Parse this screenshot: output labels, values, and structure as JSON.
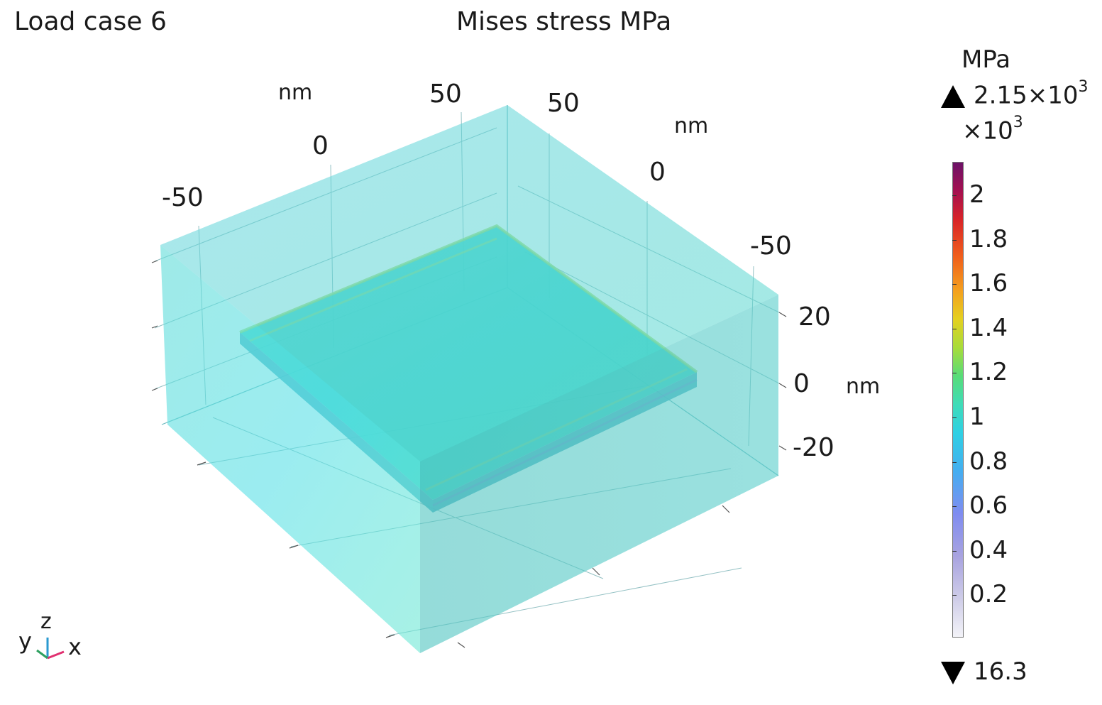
{
  "plot": {
    "load_case": "Load case 6",
    "title": "Mises stress MPa",
    "axes": {
      "x_unit": "nm",
      "x_ticks": [
        "-50",
        "0",
        "50"
      ],
      "y_unit": "nm",
      "y_ticks": [
        "50",
        "0",
        "-50"
      ],
      "z_unit": "nm",
      "z_ticks": [
        "20",
        "0",
        "-20"
      ]
    },
    "triad": {
      "y": "y",
      "z": "z",
      "x": "x"
    }
  },
  "legend": {
    "unit": "MPa",
    "max_value": "2.15×10",
    "max_exp": "3",
    "scale_base": "×10",
    "scale_exp": "3",
    "min_value": "16.3",
    "ticks": [
      "2",
      "1.8",
      "1.6",
      "1.4",
      "1.2",
      "1",
      "0.8",
      "0.6",
      "0.4",
      "0.2"
    ],
    "colors": [
      "#f3f3f8",
      "#a8a3e0",
      "#44aef0",
      "#3fdcb8",
      "#a8dc3a",
      "#f4a01e",
      "#d82428",
      "#6c1268"
    ]
  },
  "scene": {
    "box_color": "#5ad8d4",
    "plate_color": "#3ccfbc",
    "plate_edge_color": "#9ce07a"
  }
}
